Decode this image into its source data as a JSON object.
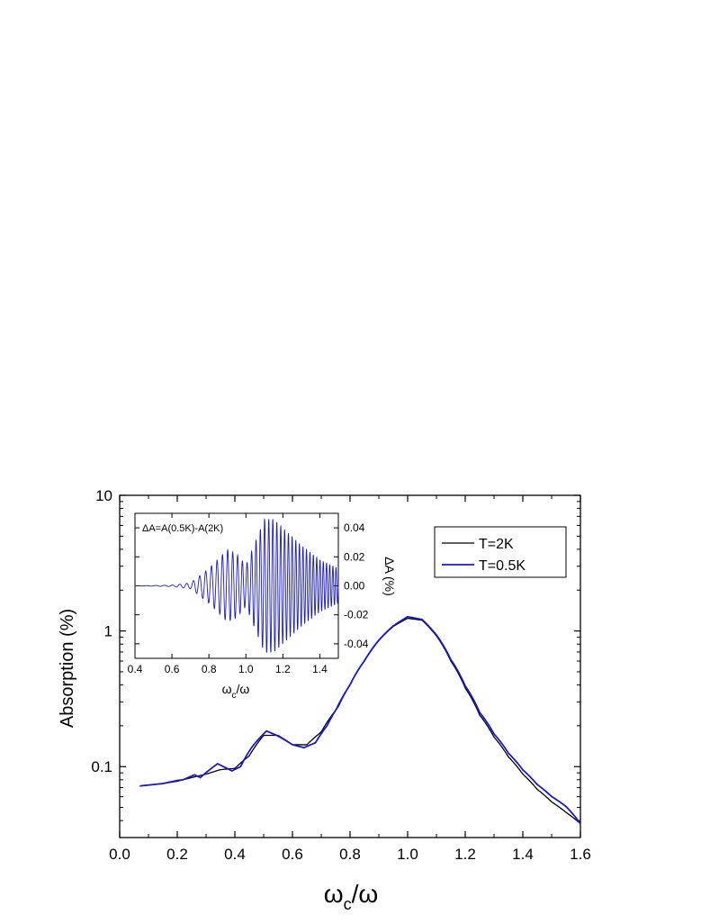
{
  "chart_data": [
    {
      "id": "main",
      "type": "line",
      "xlabel": "ω_c/ω",
      "ylabel": "Absorption (%)",
      "xlim": [
        0.0,
        1.6
      ],
      "ylim": [
        0.03,
        10
      ],
      "yscale": "log",
      "x_ticks": [
        "0.0",
        "0.2",
        "0.4",
        "0.6",
        "0.8",
        "1.0",
        "1.2",
        "1.4",
        "1.6"
      ],
      "y_ticks": [
        "0.1",
        "1",
        "10"
      ],
      "legend": {
        "placement": "top-right",
        "entries": [
          "T=2K",
          "T=0.5K"
        ]
      },
      "series": [
        {
          "name": "T=2K",
          "color": "#000000",
          "points": [
            [
              0.07,
              0.072
            ],
            [
              0.15,
              0.075
            ],
            [
              0.2,
              0.078
            ],
            [
              0.25,
              0.083
            ],
            [
              0.3,
              0.088
            ],
            [
              0.35,
              0.095
            ],
            [
              0.4,
              0.097
            ],
            [
              0.45,
              0.12
            ],
            [
              0.5,
              0.17
            ],
            [
              0.55,
              0.17
            ],
            [
              0.6,
              0.145
            ],
            [
              0.65,
              0.145
            ],
            [
              0.7,
              0.18
            ],
            [
              0.75,
              0.26
            ],
            [
              0.8,
              0.4
            ],
            [
              0.85,
              0.6
            ],
            [
              0.9,
              0.85
            ],
            [
              0.95,
              1.08
            ],
            [
              1.0,
              1.24
            ],
            [
              1.05,
              1.2
            ],
            [
              1.1,
              0.92
            ],
            [
              1.15,
              0.6
            ],
            [
              1.2,
              0.38
            ],
            [
              1.25,
              0.24
            ],
            [
              1.3,
              0.165
            ],
            [
              1.35,
              0.118
            ],
            [
              1.4,
              0.088
            ],
            [
              1.45,
              0.068
            ],
            [
              1.5,
              0.055
            ],
            [
              1.55,
              0.046
            ],
            [
              1.6,
              0.038
            ]
          ]
        },
        {
          "name": "T=0.5K",
          "color": "#1a1acc",
          "points": [
            [
              0.07,
              0.072
            ],
            [
              0.15,
              0.075
            ],
            [
              0.2,
              0.079
            ],
            [
              0.22,
              0.08
            ],
            [
              0.26,
              0.087
            ],
            [
              0.28,
              0.083
            ],
            [
              0.34,
              0.105
            ],
            [
              0.36,
              0.1
            ],
            [
              0.39,
              0.093
            ],
            [
              0.42,
              0.1
            ],
            [
              0.46,
              0.14
            ],
            [
              0.51,
              0.183
            ],
            [
              0.55,
              0.168
            ],
            [
              0.6,
              0.145
            ],
            [
              0.64,
              0.138
            ],
            [
              0.68,
              0.15
            ],
            [
              0.72,
              0.2
            ],
            [
              0.76,
              0.28
            ],
            [
              0.8,
              0.4
            ],
            [
              0.85,
              0.6
            ],
            [
              0.9,
              0.85
            ],
            [
              0.95,
              1.08
            ],
            [
              1.0,
              1.26
            ],
            [
              1.05,
              1.2
            ],
            [
              1.1,
              0.92
            ],
            [
              1.15,
              0.6
            ],
            [
              1.2,
              0.38
            ],
            [
              1.25,
              0.24
            ],
            [
              1.3,
              0.165
            ],
            [
              1.35,
              0.118
            ],
            [
              1.4,
              0.088
            ],
            [
              1.45,
              0.068
            ],
            [
              1.5,
              0.055
            ],
            [
              1.55,
              0.046
            ],
            [
              1.6,
              0.034
            ]
          ]
        }
      ]
    },
    {
      "id": "inset",
      "type": "line",
      "title": "ΔA=A(0.5K)-A(2K)",
      "xlabel": "ω_c/ω",
      "ylabel": "ΔA   (%)",
      "xlim": [
        0.4,
        1.5
      ],
      "ylim": [
        -0.05,
        0.05
      ],
      "x_ticks": [
        "0.4",
        "0.6",
        "0.8",
        "1.0",
        "1.2",
        "1.4"
      ],
      "y_ticks": [
        "0.04",
        "0.02",
        "0.00",
        "-0.02",
        "-0.04"
      ],
      "series": [
        {
          "name": "ΔA",
          "color": "#1a1acc",
          "envelope": [
            [
              0.4,
              0.0
            ],
            [
              0.6,
              0.0005
            ],
            [
              0.7,
              0.002
            ],
            [
              0.8,
              0.012
            ],
            [
              0.9,
              0.025
            ],
            [
              0.95,
              0.022
            ],
            [
              1.0,
              0.014
            ],
            [
              1.05,
              0.03
            ],
            [
              1.1,
              0.046
            ],
            [
              1.15,
              0.046
            ],
            [
              1.2,
              0.04
            ],
            [
              1.3,
              0.028
            ],
            [
              1.4,
              0.018
            ],
            [
              1.5,
              0.012
            ]
          ]
        }
      ]
    }
  ]
}
